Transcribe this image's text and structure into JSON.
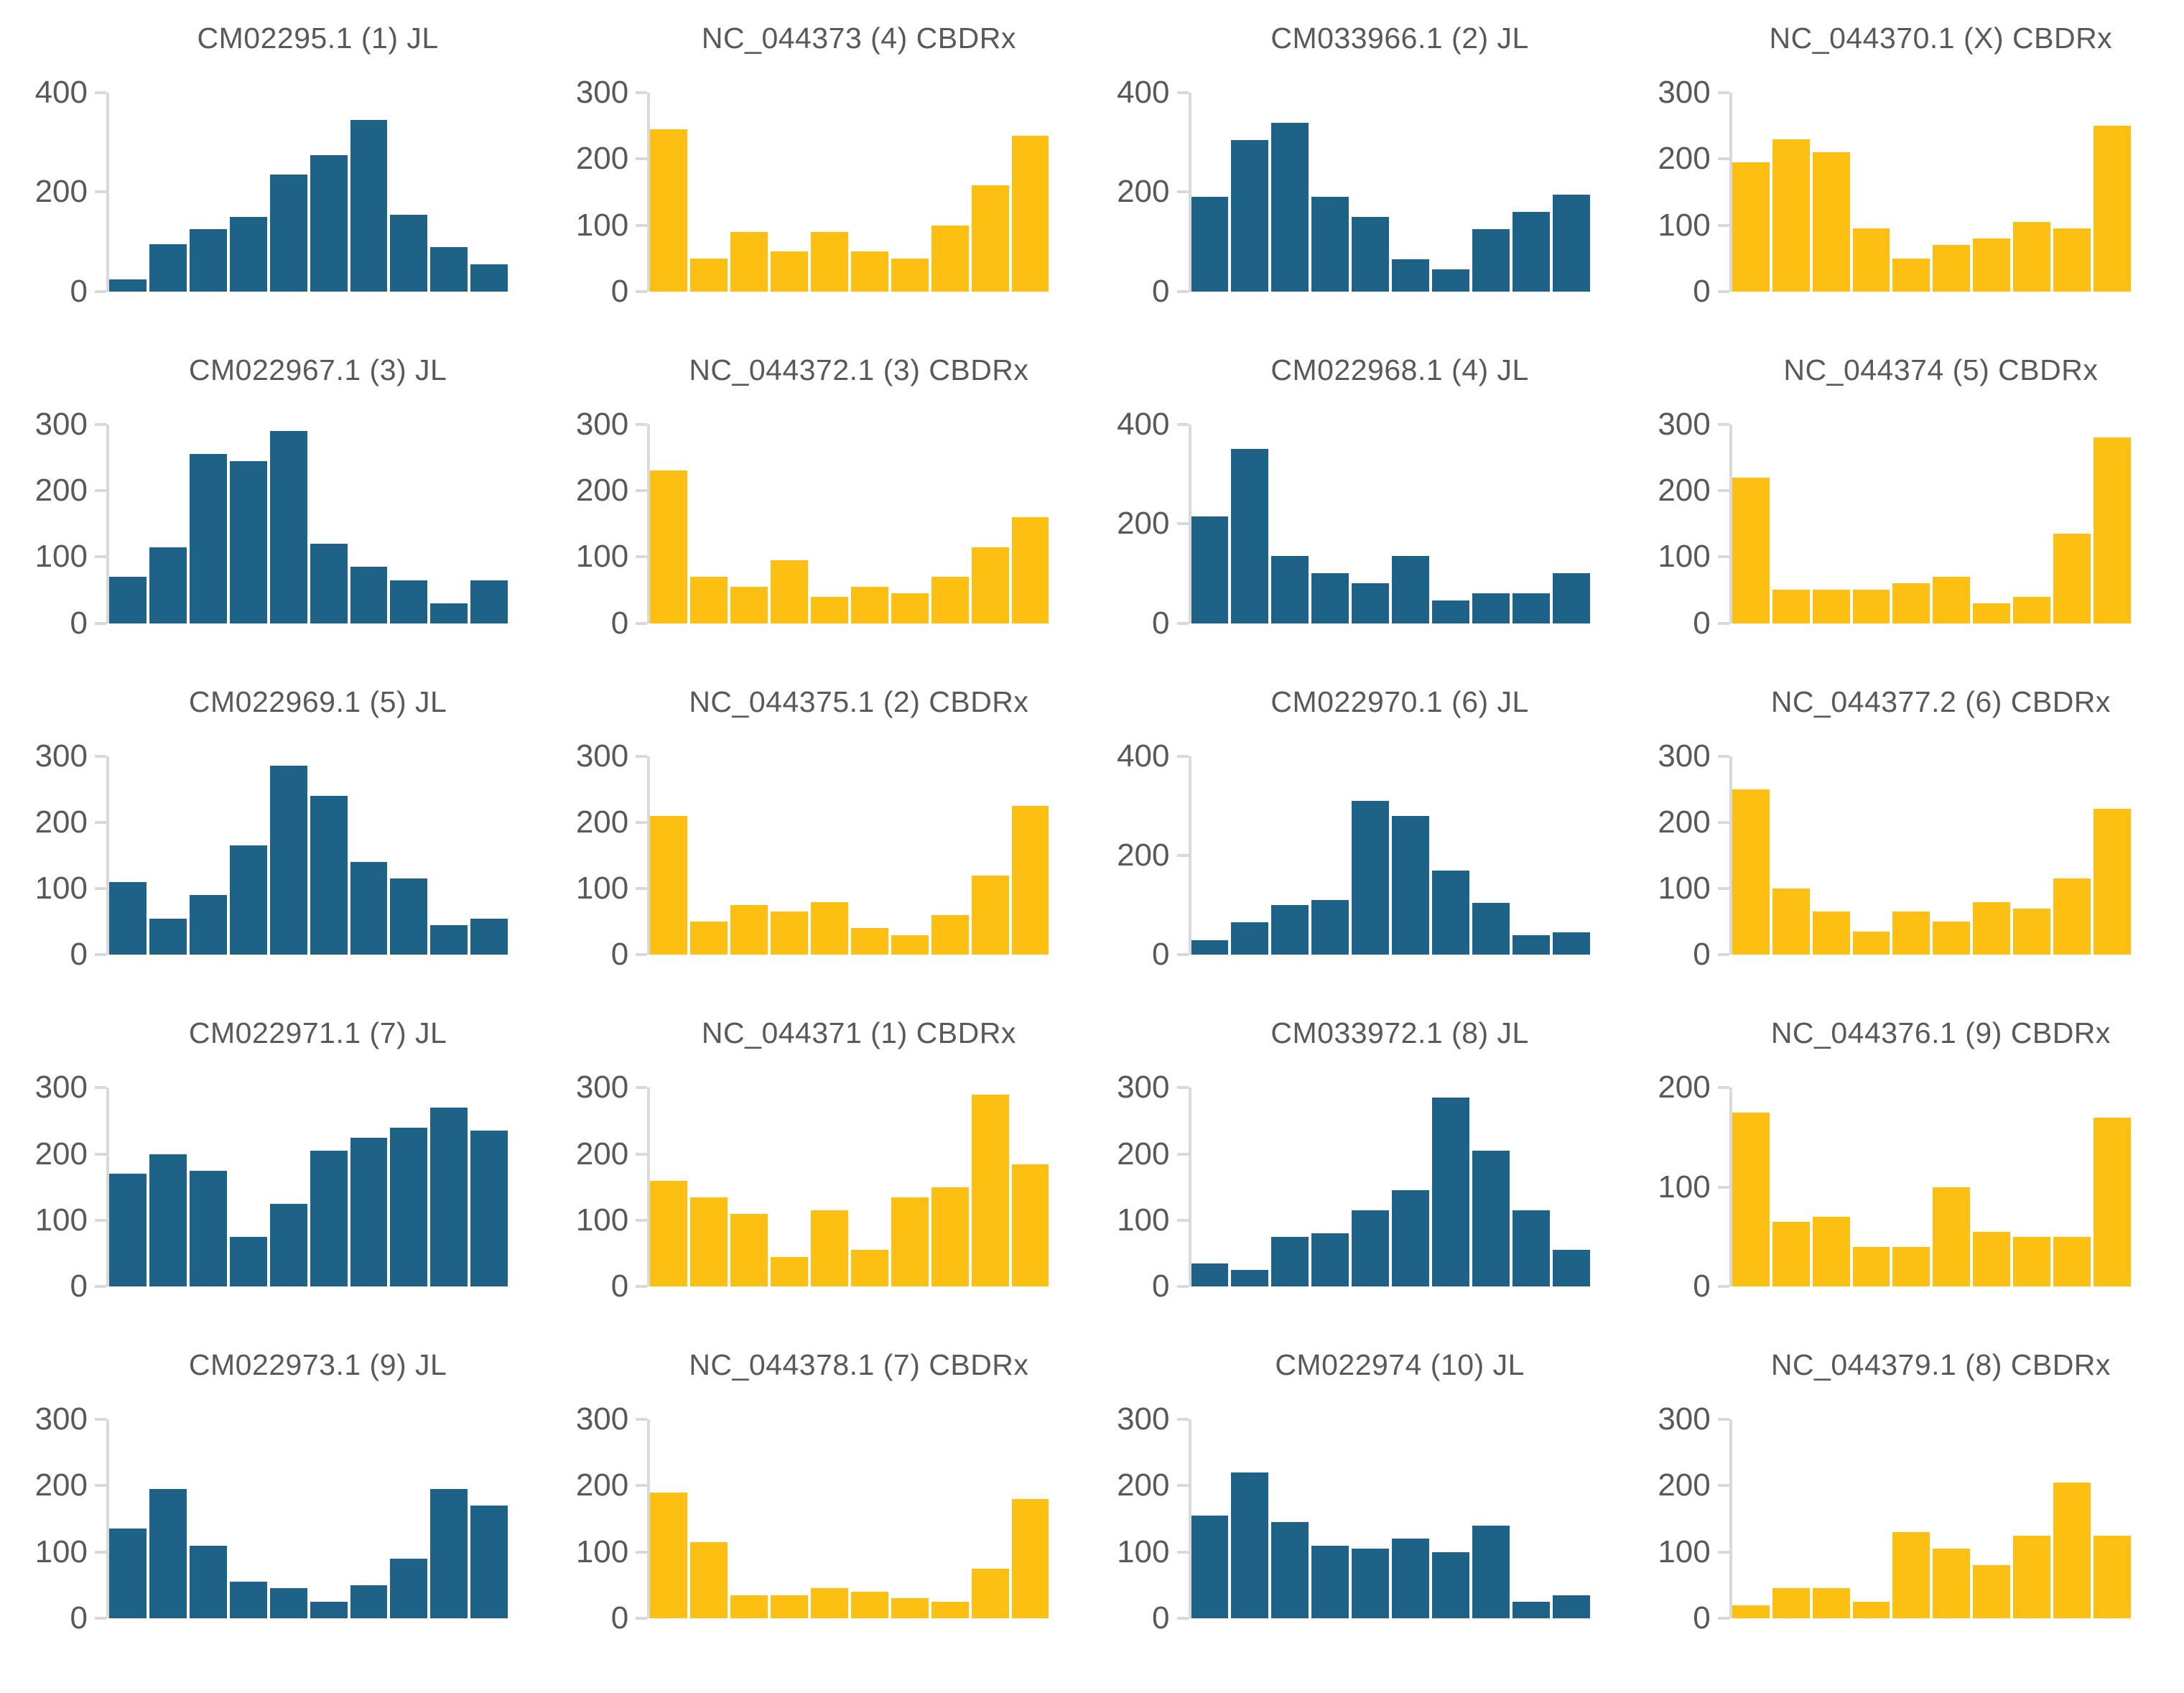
{
  "page": {
    "background": "#ffffff"
  },
  "colors": {
    "jl_bar": "#1f6287",
    "cbdrx_bar": "#fdbf11",
    "axis_text": "#595959",
    "axis_line": "#d9d9d9"
  },
  "grid": {
    "columns": 4,
    "rows": 5
  },
  "chart_data": [
    {
      "type": "bar",
      "title": "CM02295.1 (1) JL",
      "group": "JL",
      "color": "#1f6287",
      "xlabel": "",
      "ylabel": "",
      "ylim": [
        0,
        400
      ],
      "yticks": [
        0,
        200,
        400
      ],
      "bins": 10,
      "values": [
        25,
        95,
        125,
        150,
        235,
        275,
        345,
        155,
        90,
        55
      ],
      "grid_lines": false,
      "legend": "none"
    },
    {
      "type": "bar",
      "title": "NC_044373 (4) CBDRx",
      "group": "CBDRx",
      "color": "#fdbf11",
      "xlabel": "",
      "ylabel": "",
      "ylim": [
        0,
        300
      ],
      "yticks": [
        0,
        100,
        200,
        300
      ],
      "bins": 10,
      "values": [
        245,
        50,
        90,
        60,
        90,
        60,
        50,
        100,
        160,
        235
      ],
      "grid_lines": false,
      "legend": "none"
    },
    {
      "type": "bar",
      "title": "CM033966.1 (2) JL",
      "group": "JL",
      "color": "#1f6287",
      "xlabel": "",
      "ylabel": "",
      "ylim": [
        0,
        400
      ],
      "yticks": [
        0,
        200,
        400
      ],
      "bins": 10,
      "values": [
        190,
        305,
        340,
        190,
        150,
        65,
        45,
        125,
        160,
        195
      ],
      "grid_lines": false,
      "legend": "none"
    },
    {
      "type": "bar",
      "title": "NC_044370.1 (X) CBDRx",
      "group": "CBDRx",
      "color": "#fdbf11",
      "xlabel": "",
      "ylabel": "",
      "ylim": [
        0,
        300
      ],
      "yticks": [
        0,
        100,
        200,
        300
      ],
      "bins": 10,
      "values": [
        195,
        230,
        210,
        95,
        50,
        70,
        80,
        105,
        95,
        250
      ],
      "grid_lines": false,
      "legend": "none"
    },
    {
      "type": "bar",
      "title": "CM022967.1 (3) JL",
      "group": "JL",
      "color": "#1f6287",
      "xlabel": "",
      "ylabel": "",
      "ylim": [
        0,
        300
      ],
      "yticks": [
        0,
        100,
        200,
        300
      ],
      "bins": 10,
      "values": [
        70,
        115,
        255,
        245,
        290,
        120,
        85,
        65,
        30,
        65
      ],
      "grid_lines": false,
      "legend": "none"
    },
    {
      "type": "bar",
      "title": "NC_044372.1 (3) CBDRx",
      "group": "CBDRx",
      "color": "#fdbf11",
      "xlabel": "",
      "ylabel": "",
      "ylim": [
        0,
        300
      ],
      "yticks": [
        0,
        100,
        200,
        300
      ],
      "bins": 10,
      "values": [
        230,
        70,
        55,
        95,
        40,
        55,
        45,
        70,
        115,
        160
      ],
      "grid_lines": false,
      "legend": "none"
    },
    {
      "type": "bar",
      "title": "CM022968.1 (4) JL",
      "group": "JL",
      "color": "#1f6287",
      "xlabel": "",
      "ylabel": "",
      "ylim": [
        0,
        400
      ],
      "yticks": [
        0,
        200,
        400
      ],
      "bins": 10,
      "values": [
        215,
        350,
        135,
        100,
        80,
        135,
        45,
        60,
        60,
        100
      ],
      "grid_lines": false,
      "legend": "none"
    },
    {
      "type": "bar",
      "title": "NC_044374 (5) CBDRx",
      "group": "CBDRx",
      "color": "#fdbf11",
      "xlabel": "",
      "ylabel": "",
      "ylim": [
        0,
        300
      ],
      "yticks": [
        0,
        100,
        200,
        300
      ],
      "bins": 10,
      "values": [
        220,
        50,
        50,
        50,
        60,
        70,
        30,
        40,
        135,
        280
      ],
      "grid_lines": false,
      "legend": "none"
    },
    {
      "type": "bar",
      "title": "CM022969.1 (5) JL",
      "group": "JL",
      "color": "#1f6287",
      "xlabel": "",
      "ylabel": "",
      "ylim": [
        0,
        300
      ],
      "yticks": [
        0,
        100,
        200,
        300
      ],
      "bins": 10,
      "values": [
        110,
        55,
        90,
        165,
        285,
        240,
        140,
        115,
        45,
        55
      ],
      "grid_lines": false,
      "legend": "none"
    },
    {
      "type": "bar",
      "title": "NC_044375.1 (2) CBDRx",
      "group": "CBDRx",
      "color": "#fdbf11",
      "xlabel": "",
      "ylabel": "",
      "ylim": [
        0,
        300
      ],
      "yticks": [
        0,
        100,
        200,
        300
      ],
      "bins": 10,
      "values": [
        210,
        50,
        75,
        65,
        80,
        40,
        30,
        60,
        120,
        225
      ],
      "grid_lines": false,
      "legend": "none"
    },
    {
      "type": "bar",
      "title": "CM022970.1 (6) JL",
      "group": "JL",
      "color": "#1f6287",
      "xlabel": "",
      "ylabel": "",
      "ylim": [
        0,
        400
      ],
      "yticks": [
        0,
        200,
        400
      ],
      "bins": 10,
      "values": [
        30,
        65,
        100,
        110,
        310,
        280,
        170,
        105,
        40,
        45
      ],
      "grid_lines": false,
      "legend": "none"
    },
    {
      "type": "bar",
      "title": "NC_044377.2 (6) CBDRx",
      "group": "CBDRx",
      "color": "#fdbf11",
      "xlabel": "",
      "ylabel": "",
      "ylim": [
        0,
        300
      ],
      "yticks": [
        0,
        100,
        200,
        300
      ],
      "bins": 10,
      "values": [
        250,
        100,
        65,
        35,
        65,
        50,
        80,
        70,
        115,
        220
      ],
      "grid_lines": false,
      "legend": "none"
    },
    {
      "type": "bar",
      "title": "CM022971.1 (7) JL",
      "group": "JL",
      "color": "#1f6287",
      "xlabel": "",
      "ylabel": "",
      "ylim": [
        0,
        300
      ],
      "yticks": [
        0,
        100,
        200,
        300
      ],
      "bins": 10,
      "values": [
        170,
        200,
        175,
        75,
        125,
        205,
        225,
        240,
        270,
        235
      ],
      "grid_lines": false,
      "legend": "none"
    },
    {
      "type": "bar",
      "title": "NC_044371 (1) CBDRx",
      "group": "CBDRx",
      "color": "#fdbf11",
      "xlabel": "",
      "ylabel": "",
      "ylim": [
        0,
        300
      ],
      "yticks": [
        0,
        100,
        200,
        300
      ],
      "bins": 10,
      "values": [
        160,
        135,
        110,
        45,
        115,
        55,
        135,
        150,
        290,
        185
      ],
      "grid_lines": false,
      "legend": "none"
    },
    {
      "type": "bar",
      "title": "CM033972.1 (8) JL",
      "group": "JL",
      "color": "#1f6287",
      "xlabel": "",
      "ylabel": "",
      "ylim": [
        0,
        300
      ],
      "yticks": [
        0,
        100,
        200,
        300
      ],
      "bins": 10,
      "values": [
        35,
        25,
        75,
        80,
        115,
        145,
        285,
        205,
        115,
        55
      ],
      "grid_lines": false,
      "legend": "none"
    },
    {
      "type": "bar",
      "title": "NC_044376.1 (9) CBDRx",
      "group": "CBDRx",
      "color": "#fdbf11",
      "xlabel": "",
      "ylabel": "",
      "ylim": [
        0,
        200
      ],
      "yticks": [
        0,
        100,
        200
      ],
      "bins": 10,
      "values": [
        175,
        65,
        70,
        40,
        40,
        100,
        55,
        50,
        50,
        170
      ],
      "grid_lines": false,
      "legend": "none"
    },
    {
      "type": "bar",
      "title": "CM022973.1 (9) JL",
      "group": "JL",
      "color": "#1f6287",
      "xlabel": "",
      "ylabel": "",
      "ylim": [
        0,
        300
      ],
      "yticks": [
        0,
        100,
        200,
        300
      ],
      "bins": 10,
      "values": [
        135,
        195,
        110,
        55,
        45,
        25,
        50,
        90,
        195,
        170
      ],
      "grid_lines": false,
      "legend": "none"
    },
    {
      "type": "bar",
      "title": "NC_044378.1 (7) CBDRx",
      "group": "CBDRx",
      "color": "#fdbf11",
      "xlabel": "",
      "ylabel": "",
      "ylim": [
        0,
        300
      ],
      "yticks": [
        0,
        100,
        200,
        300
      ],
      "bins": 10,
      "values": [
        190,
        115,
        35,
        35,
        45,
        40,
        30,
        25,
        75,
        180
      ],
      "grid_lines": false,
      "legend": "none"
    },
    {
      "type": "bar",
      "title": "CM022974 (10) JL",
      "group": "JL",
      "color": "#1f6287",
      "xlabel": "",
      "ylabel": "",
      "ylim": [
        0,
        300
      ],
      "yticks": [
        0,
        100,
        200,
        300
      ],
      "bins": 10,
      "values": [
        155,
        220,
        145,
        110,
        105,
        120,
        100,
        140,
        25,
        35
      ],
      "grid_lines": false,
      "legend": "none"
    },
    {
      "type": "bar",
      "title": "NC_044379.1 (8) CBDRx",
      "group": "CBDRx",
      "color": "#fdbf11",
      "xlabel": "",
      "ylabel": "",
      "ylim": [
        0,
        300
      ],
      "yticks": [
        0,
        100,
        200,
        300
      ],
      "bins": 10,
      "values": [
        20,
        45,
        45,
        25,
        130,
        105,
        80,
        125,
        205,
        125
      ],
      "grid_lines": false,
      "legend": "none"
    }
  ]
}
